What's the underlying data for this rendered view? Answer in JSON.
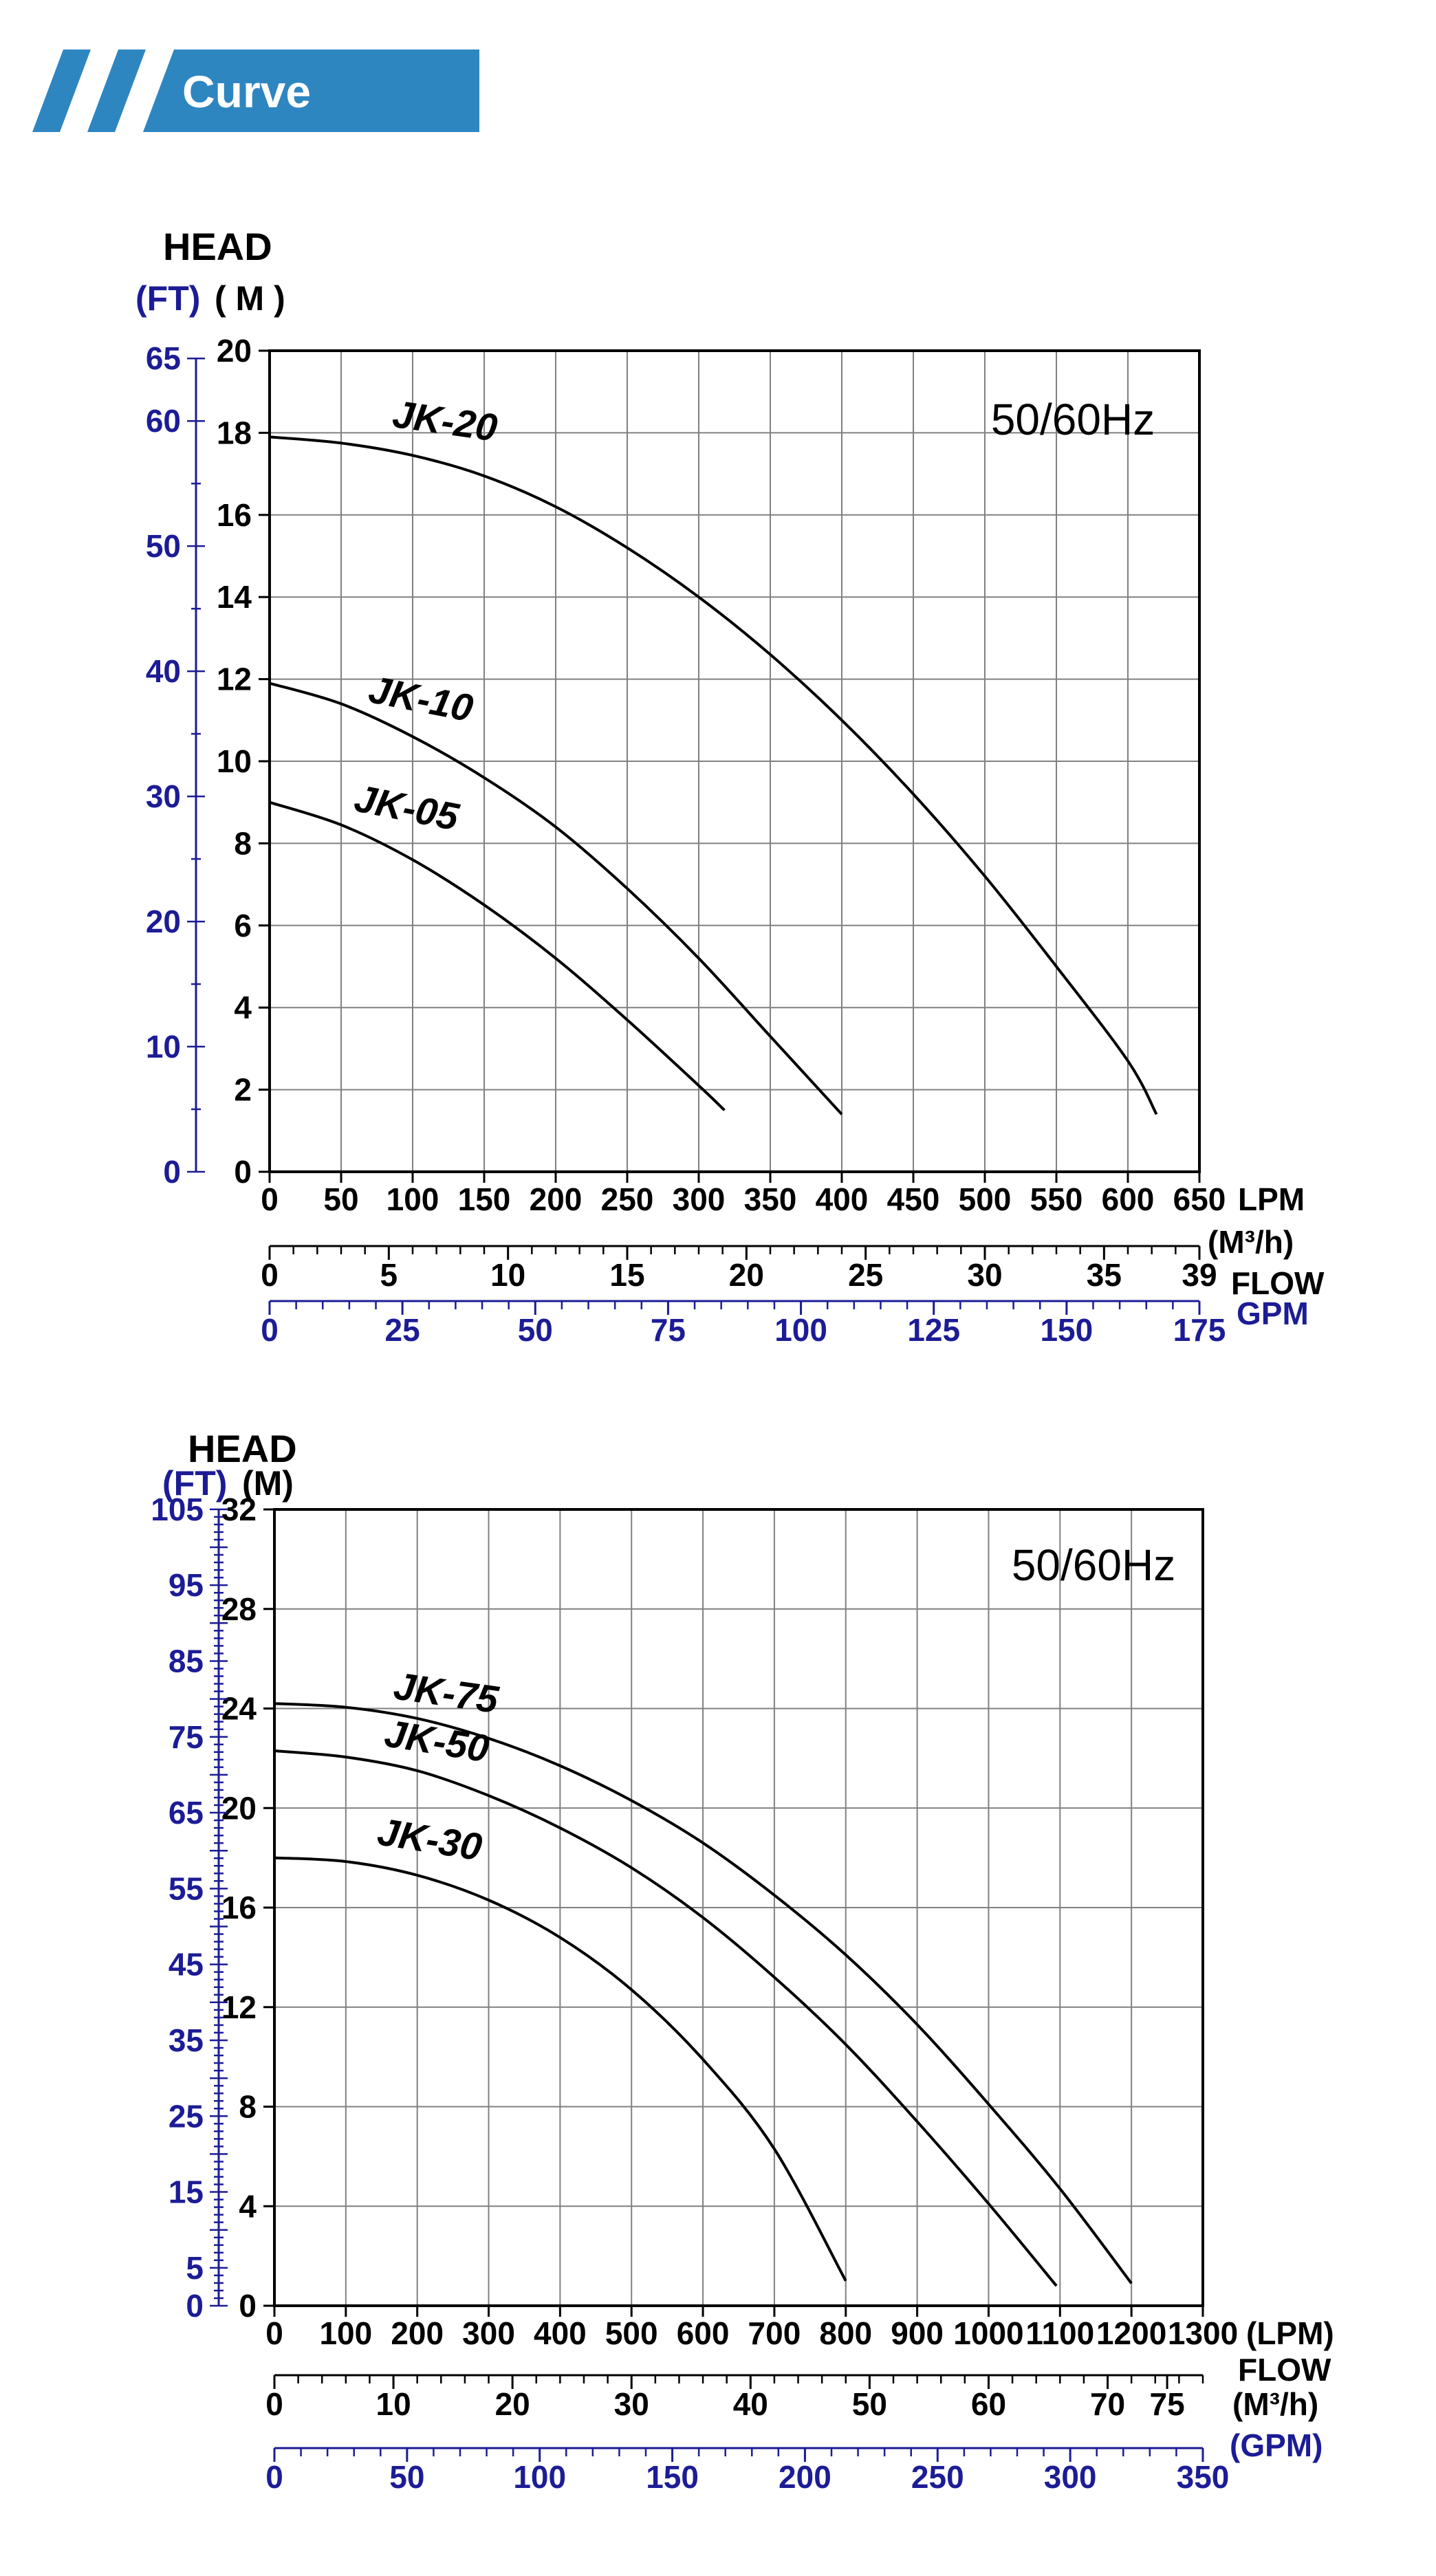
{
  "header": {
    "label": "Curve"
  },
  "colors": {
    "accent_blue": "#2e86c1",
    "navy": "#1c1c96",
    "black": "#000000",
    "grid": "#808080",
    "white": "#ffffff"
  },
  "chart_data": [
    {
      "type": "line",
      "title": "HEAD",
      "y_left_unit_ft": "(FT)",
      "y_left_unit_m": "( M )",
      "corner_label": "50/60Hz",
      "x_axis_lpm": {
        "min": 0,
        "max": 650,
        "step": 50,
        "unit_label": "LPM"
      },
      "y_axis_m": {
        "min": 0,
        "max": 20,
        "step": 2
      },
      "y_axis_ft": {
        "labels": [
          65,
          60,
          50,
          40,
          30,
          20,
          10,
          0
        ],
        "minor_step": 5,
        "m_per_ft": 0.3048
      },
      "x_axis_m3h": {
        "labels": [
          0,
          5,
          10,
          15,
          20,
          25,
          30,
          35,
          39
        ],
        "minor_step": 1,
        "lpm_per_unit": 16.6667,
        "unit_label": "(M³/h)",
        "flow_label": "FLOW"
      },
      "x_axis_gpm": {
        "max": 175,
        "labels": [
          0,
          25,
          50,
          75,
          100,
          125,
          150,
          175
        ],
        "minor_step": 5,
        "unit_label": "GPM"
      },
      "series": [
        {
          "name": "JK-20",
          "label_lpm": 85,
          "label_m": 18.15,
          "label_rot": 8,
          "points_lpm_m": [
            [
              0,
              17.9
            ],
            [
              50,
              17.75
            ],
            [
              100,
              17.45
            ],
            [
              150,
              16.95
            ],
            [
              200,
              16.2
            ],
            [
              250,
              15.2
            ],
            [
              300,
              14.0
            ],
            [
              350,
              12.6
            ],
            [
              400,
              11.0
            ],
            [
              450,
              9.2
            ],
            [
              500,
              7.2
            ],
            [
              550,
              5.0
            ],
            [
              600,
              2.7
            ],
            [
              620,
              1.4
            ]
          ]
        },
        {
          "name": "JK-10",
          "label_lpm": 68,
          "label_m": 11.45,
          "label_rot": 11,
          "points_lpm_m": [
            [
              0,
              11.9
            ],
            [
              50,
              11.4
            ],
            [
              100,
              10.6
            ],
            [
              150,
              9.6
            ],
            [
              200,
              8.4
            ],
            [
              250,
              6.9
            ],
            [
              300,
              5.2
            ],
            [
              350,
              3.3
            ],
            [
              400,
              1.4
            ]
          ]
        },
        {
          "name": "JK-05",
          "label_lpm": 58,
          "label_m": 8.8,
          "label_rot": 11,
          "points_lpm_m": [
            [
              0,
              9.0
            ],
            [
              50,
              8.45
            ],
            [
              100,
              7.6
            ],
            [
              150,
              6.5
            ],
            [
              200,
              5.2
            ],
            [
              250,
              3.7
            ],
            [
              300,
              2.1
            ],
            [
              318,
              1.5
            ]
          ]
        }
      ]
    },
    {
      "type": "line",
      "title": "HEAD",
      "y_left_unit_ft": "(FT)",
      "y_left_unit_m": "(M)",
      "corner_label": "50/60Hz",
      "x_axis_lpm": {
        "min": 0,
        "max": 1300,
        "step": 100,
        "unit_label": "(LPM)"
      },
      "y_axis_m": {
        "min": 0,
        "max": 32,
        "step": 4
      },
      "y_axis_ft": {
        "labels": [
          105,
          95,
          85,
          75,
          65,
          55,
          45,
          35,
          25,
          15,
          5,
          0
        ],
        "minor_step": 1,
        "mid_step": 5,
        "m_per_ft": 0.3048
      },
      "x_axis_m3h": {
        "labels": [
          0,
          10,
          20,
          30,
          40,
          50,
          60,
          70,
          75
        ],
        "minor_step": 2,
        "lpm_per_unit": 16.6667,
        "unit_label": "(M³/h)",
        "flow_label": "FLOW"
      },
      "x_axis_gpm": {
        "max": 350,
        "labels": [
          0,
          50,
          100,
          150,
          200,
          250,
          300,
          350
        ],
        "minor_step": 10,
        "unit_label": "(GPM)"
      },
      "series": [
        {
          "name": "JK-75",
          "label_lpm": 165,
          "label_m": 24.4,
          "label_rot": 8,
          "points_lpm_m": [
            [
              0,
              24.2
            ],
            [
              100,
              24.05
            ],
            [
              200,
              23.6
            ],
            [
              300,
              22.8
            ],
            [
              400,
              21.7
            ],
            [
              500,
              20.3
            ],
            [
              600,
              18.6
            ],
            [
              700,
              16.5
            ],
            [
              800,
              14.1
            ],
            [
              900,
              11.3
            ],
            [
              1000,
              8.1
            ],
            [
              1100,
              4.7
            ],
            [
              1200,
              0.9
            ]
          ]
        },
        {
          "name": "JK-50",
          "label_lpm": 152,
          "label_m": 22.5,
          "label_rot": 9,
          "points_lpm_m": [
            [
              0,
              22.3
            ],
            [
              100,
              22.05
            ],
            [
              200,
              21.5
            ],
            [
              300,
              20.5
            ],
            [
              400,
              19.2
            ],
            [
              500,
              17.6
            ],
            [
              600,
              15.6
            ],
            [
              700,
              13.2
            ],
            [
              800,
              10.5
            ],
            [
              900,
              7.4
            ],
            [
              1000,
              4.1
            ],
            [
              1095,
              0.8
            ]
          ]
        },
        {
          "name": "JK-30",
          "label_lpm": 142,
          "label_m": 18.55,
          "label_rot": 9,
          "points_lpm_m": [
            [
              0,
              18.0
            ],
            [
              100,
              17.85
            ],
            [
              200,
              17.3
            ],
            [
              300,
              16.3
            ],
            [
              400,
              14.8
            ],
            [
              500,
              12.7
            ],
            [
              600,
              9.9
            ],
            [
              700,
              6.3
            ],
            [
              800,
              1.0
            ]
          ]
        }
      ]
    }
  ]
}
